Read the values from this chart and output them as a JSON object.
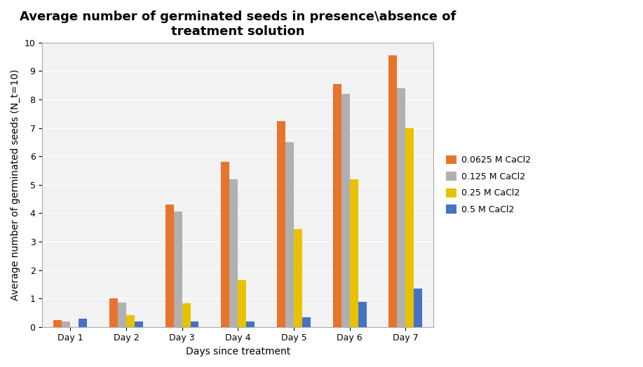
{
  "title": "Average number of germinated seeds in presence\\absence of\ntreatment solution",
  "xlabel": "Days since treatment",
  "ylabel": "Average number of germinated seeds (N_t=10)",
  "categories": [
    "Day 1",
    "Day 2",
    "Day 3",
    "Day 4",
    "Day 5",
    "Day 6",
    "Day 7"
  ],
  "series": [
    {
      "label": "0.0625 M CaCl2",
      "color": "#E8732A",
      "values": [
        0.25,
        1.0,
        4.3,
        5.8,
        7.25,
        8.55,
        9.55
      ]
    },
    {
      "label": "0.125 M CaCl2",
      "color": "#B0B0B0",
      "values": [
        0.18,
        0.85,
        4.05,
        5.2,
        6.5,
        8.2,
        8.4
      ]
    },
    {
      "label": "0.25 M CaCl2",
      "color": "#E8C200",
      "values": [
        0.0,
        0.42,
        0.82,
        1.65,
        3.45,
        5.2,
        7.0
      ]
    },
    {
      "label": "0.5 M CaCl2",
      "color": "#4472C4",
      "values": [
        0.28,
        0.2,
        0.2,
        0.2,
        0.35,
        0.88,
        1.35
      ]
    }
  ],
  "ylim": [
    0,
    10
  ],
  "yticks": [
    0,
    1,
    2,
    3,
    4,
    5,
    6,
    7,
    8,
    9,
    10
  ],
  "bar_width": 0.15,
  "plot_bg_color": "#F2F2F2",
  "fig_bg_color": "#FFFFFF",
  "grid_color": "#FFFFFF",
  "title_fontsize": 13,
  "axis_label_fontsize": 10,
  "tick_fontsize": 9,
  "legend_fontsize": 9
}
